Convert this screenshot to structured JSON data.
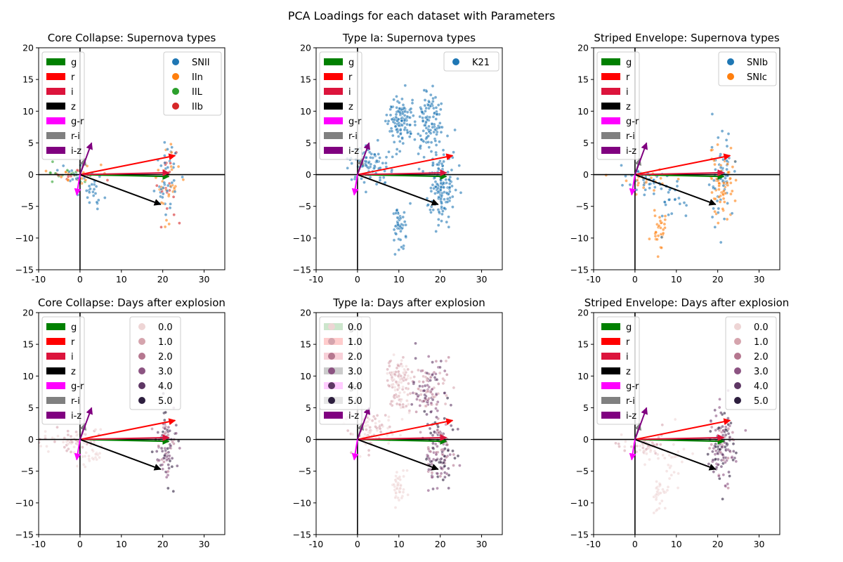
{
  "figure": {
    "suptitle": "PCA Loadings for each dataset with Parameters"
  },
  "colors": {
    "g": "#008000",
    "r": "#ff0000",
    "i": "#dc143c",
    "z": "#000000",
    "g-r": "#ff00ff",
    "r-i": "#808080",
    "i-z": "#800080",
    "tab_blue": "#1f77b4",
    "tab_orange": "#ff7f0e",
    "tab_green": "#2ca02c",
    "tab_red": "#d62728",
    "days": [
      "#eed5d5",
      "#d5a4ad",
      "#b5778f",
      "#8c5482",
      "#5e3764",
      "#2d1e3e"
    ],
    "axis_line": "#000000"
  },
  "loadings": {
    "labels": [
      "g",
      "r",
      "i",
      "z",
      "g-r",
      "r-i",
      "i-z"
    ],
    "vectors": [
      {
        "name": "g",
        "dx": 21.5,
        "dy": -0.3
      },
      {
        "name": "r",
        "dx": 23.0,
        "dy": 3.0
      },
      {
        "name": "i",
        "dx": 21.5,
        "dy": 0.3
      },
      {
        "name": "z",
        "dx": 19.5,
        "dy": -4.7
      },
      {
        "name": "g-r",
        "dx": -0.8,
        "dy": -3.2
      },
      {
        "name": "r-i",
        "dx": 1.2,
        "dy": 2.5
      },
      {
        "name": "i-z",
        "dx": 2.8,
        "dy": 5.0
      }
    ]
  },
  "chart_data": [
    {
      "type": "scatter",
      "title": "Core Collapse: Supernova types",
      "xlim": [
        -10,
        35
      ],
      "ylim": [
        -15,
        20
      ],
      "xticks": [
        "-10",
        "0",
        "10",
        "20",
        "30"
      ],
      "yticks": [
        "20",
        "15",
        "10",
        "5",
        "0",
        "−5",
        "−10",
        "−15"
      ],
      "legend_title": "",
      "legend": [
        {
          "label": "SNII",
          "color": "#1f77b4"
        },
        {
          "label": "IIn",
          "color": "#ff7f0e"
        },
        {
          "label": "IIL",
          "color": "#2ca02c"
        },
        {
          "label": "IIb",
          "color": "#d62728"
        }
      ],
      "clusters": [
        {
          "cx": 21,
          "cy": -1,
          "sx": 1.5,
          "sy": 3,
          "n": 90,
          "colors": [
            "#1f77b4",
            "#ff7f0e",
            "#d62728"
          ]
        },
        {
          "cx": -2,
          "cy": 0,
          "sx": 3,
          "sy": 0.8,
          "n": 60,
          "colors": [
            "#1f77b4",
            "#ff7f0e",
            "#2ca02c",
            "#d62728"
          ]
        },
        {
          "cx": 3,
          "cy": -2.5,
          "sx": 1.5,
          "sy": 1.2,
          "n": 25,
          "colors": [
            "#1f77b4"
          ]
        }
      ]
    },
    {
      "type": "scatter",
      "title": "Type Ia: Supernova types",
      "xlim": [
        -10,
        35
      ],
      "ylim": [
        -15,
        20
      ],
      "xticks": [
        "-10",
        "0",
        "10",
        "20",
        "30"
      ],
      "yticks": [
        "20",
        "15",
        "10",
        "5",
        "0",
        "−5",
        "−10",
        "−15"
      ],
      "legend_title": "",
      "legend": [
        {
          "label": "K21",
          "color": "#1f77b4"
        }
      ],
      "clusters": [
        {
          "cx": 10,
          "cy": 8.5,
          "sx": 1.5,
          "sy": 2,
          "n": 110,
          "colors": [
            "#1f77b4"
          ]
        },
        {
          "cx": 17,
          "cy": 8,
          "sx": 2,
          "sy": 2.5,
          "n": 120,
          "colors": [
            "#1f77b4"
          ]
        },
        {
          "cx": 20,
          "cy": -2,
          "sx": 1.8,
          "sy": 3,
          "n": 140,
          "colors": [
            "#1f77b4"
          ]
        },
        {
          "cx": 10,
          "cy": -7.5,
          "sx": 0.8,
          "sy": 1.5,
          "n": 45,
          "colors": [
            "#1f77b4"
          ]
        },
        {
          "cx": 3,
          "cy": 1.5,
          "sx": 3,
          "sy": 1.5,
          "n": 80,
          "colors": [
            "#1f77b4"
          ]
        }
      ]
    },
    {
      "type": "scatter",
      "title": "Striped Envelope: Supernova types",
      "xlim": [
        -10,
        35
      ],
      "ylim": [
        -15,
        20
      ],
      "xticks": [
        "-10",
        "0",
        "10",
        "20",
        "30"
      ],
      "yticks": [
        "20",
        "15",
        "10",
        "5",
        "0",
        "−5",
        "−10",
        "−15"
      ],
      "legend_title": "",
      "legend": [
        {
          "label": "SNIb",
          "color": "#1f77b4"
        },
        {
          "label": "SNIc",
          "color": "#ff7f0e"
        }
      ],
      "clusters": [
        {
          "cx": 21,
          "cy": -1,
          "sx": 1.5,
          "sy": 3,
          "n": 130,
          "colors": [
            "#1f77b4",
            "#ff7f0e"
          ]
        },
        {
          "cx": 6,
          "cy": -9,
          "sx": 0.8,
          "sy": 1.5,
          "n": 30,
          "colors": [
            "#ff7f0e"
          ]
        },
        {
          "cx": 3,
          "cy": -1,
          "sx": 3,
          "sy": 1,
          "n": 60,
          "colors": [
            "#1f77b4",
            "#ff7f0e"
          ]
        },
        {
          "cx": 9,
          "cy": -4,
          "sx": 2,
          "sy": 2,
          "n": 25,
          "colors": [
            "#1f77b4"
          ]
        }
      ]
    },
    {
      "type": "scatter",
      "title": "Core Collapse: Days after explosion",
      "xlim": [
        -10,
        35
      ],
      "ylim": [
        -15,
        20
      ],
      "xticks": [
        "-10",
        "0",
        "10",
        "20",
        "30"
      ],
      "yticks": [
        "20",
        "15",
        "10",
        "5",
        "0",
        "−5",
        "−10",
        "−15"
      ],
      "legend_title": "",
      "legend": [
        {
          "label": "0.0",
          "color": "#eed5d5"
        },
        {
          "label": "1.0",
          "color": "#d5a4ad"
        },
        {
          "label": "2.0",
          "color": "#b5778f"
        },
        {
          "label": "3.0",
          "color": "#8c5482"
        },
        {
          "label": "4.0",
          "color": "#5e3764"
        },
        {
          "label": "5.0",
          "color": "#2d1e3e"
        }
      ],
      "clusters": [
        {
          "cx": 21,
          "cy": -1,
          "sx": 1.5,
          "sy": 3,
          "n": 90,
          "colors": [
            "#8c5482",
            "#5e3764",
            "#b5778f",
            "#2d1e3e"
          ]
        },
        {
          "cx": -2,
          "cy": 0,
          "sx": 3,
          "sy": 0.8,
          "n": 60,
          "colors": [
            "#eed5d5",
            "#d5a4ad"
          ]
        },
        {
          "cx": 3,
          "cy": -2.5,
          "sx": 1.5,
          "sy": 1.2,
          "n": 25,
          "colors": [
            "#eed5d5"
          ]
        }
      ]
    },
    {
      "type": "scatter",
      "title": "Type Ia: Days after explosion",
      "xlim": [
        -10,
        35
      ],
      "ylim": [
        -15,
        20
      ],
      "xticks": [
        "-10",
        "0",
        "10",
        "20",
        "30"
      ],
      "yticks": [
        "20",
        "15",
        "10",
        "5",
        "0",
        "−5",
        "−10",
        "−15"
      ],
      "legend_title": "",
      "legend": [
        {
          "label": "0.0",
          "color": "#eed5d5"
        },
        {
          "label": "1.0",
          "color": "#d5a4ad"
        },
        {
          "label": "2.0",
          "color": "#b5778f"
        },
        {
          "label": "3.0",
          "color": "#8c5482"
        },
        {
          "label": "4.0",
          "color": "#5e3764"
        },
        {
          "label": "5.0",
          "color": "#2d1e3e"
        }
      ],
      "clusters": [
        {
          "cx": 10,
          "cy": 8.5,
          "sx": 1.5,
          "sy": 2,
          "n": 110,
          "colors": [
            "#eed5d5",
            "#d5a4ad"
          ]
        },
        {
          "cx": 17,
          "cy": 8,
          "sx": 2,
          "sy": 2.5,
          "n": 120,
          "colors": [
            "#5e3764",
            "#8c5482",
            "#b5778f",
            "#d5a4ad"
          ]
        },
        {
          "cx": 20,
          "cy": -2,
          "sx": 1.8,
          "sy": 3,
          "n": 140,
          "colors": [
            "#8c5482",
            "#5e3764",
            "#b5778f",
            "#2d1e3e"
          ]
        },
        {
          "cx": 10,
          "cy": -7.5,
          "sx": 0.8,
          "sy": 1.5,
          "n": 45,
          "colors": [
            "#eed5d5"
          ]
        },
        {
          "cx": 3,
          "cy": 1.5,
          "sx": 3,
          "sy": 1.5,
          "n": 80,
          "colors": [
            "#eed5d5",
            "#d5a4ad"
          ]
        }
      ]
    },
    {
      "type": "scatter",
      "title": "Striped Envelope: Days after explosion",
      "xlim": [
        -10,
        35
      ],
      "ylim": [
        -15,
        20
      ],
      "xticks": [
        "-10",
        "0",
        "10",
        "20",
        "30"
      ],
      "yticks": [
        "20",
        "15",
        "10",
        "5",
        "0",
        "−5",
        "−10",
        "−15"
      ],
      "legend_title": "",
      "legend": [
        {
          "label": "0.0",
          "color": "#eed5d5"
        },
        {
          "label": "1.0",
          "color": "#d5a4ad"
        },
        {
          "label": "2.0",
          "color": "#b5778f"
        },
        {
          "label": "3.0",
          "color": "#8c5482"
        },
        {
          "label": "4.0",
          "color": "#5e3764"
        },
        {
          "label": "5.0",
          "color": "#2d1e3e"
        }
      ],
      "clusters": [
        {
          "cx": 21,
          "cy": -1,
          "sx": 1.5,
          "sy": 3,
          "n": 130,
          "colors": [
            "#8c5482",
            "#5e3764",
            "#b5778f",
            "#2d1e3e"
          ]
        },
        {
          "cx": 6,
          "cy": -9,
          "sx": 0.8,
          "sy": 1.5,
          "n": 30,
          "colors": [
            "#eed5d5"
          ]
        },
        {
          "cx": 3,
          "cy": -1,
          "sx": 3,
          "sy": 1,
          "n": 60,
          "colors": [
            "#eed5d5",
            "#d5a4ad"
          ]
        },
        {
          "cx": 9,
          "cy": -4,
          "sx": 2,
          "sy": 2,
          "n": 25,
          "colors": [
            "#eed5d5"
          ]
        }
      ]
    }
  ]
}
